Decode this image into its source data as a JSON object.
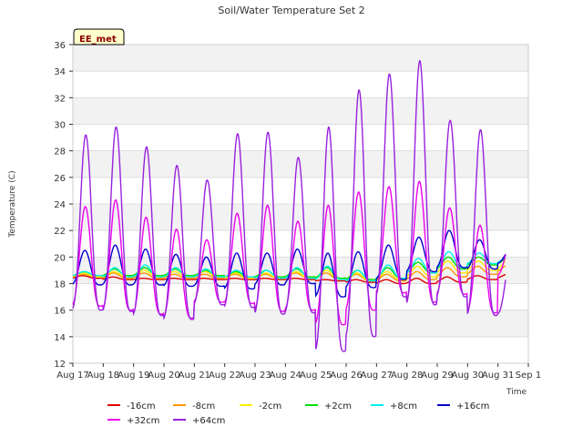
{
  "chart_data": {
    "type": "line",
    "title": "Soil/Water Temperature Set 2",
    "xlabel": "Time",
    "ylabel": "Temperature (C)",
    "badge": "EE_met",
    "x_ticks": [
      "Aug 17",
      "Aug 18",
      "Aug 19",
      "Aug 20",
      "Aug 21",
      "Aug 22",
      "Aug 23",
      "Aug 24",
      "Aug 25",
      "Aug 26",
      "Aug 27",
      "Aug 28",
      "Aug 29",
      "Aug 30",
      "Aug 31",
      "Sep 1"
    ],
    "xlim": [
      0,
      15
    ],
    "ylim": [
      12,
      36
    ],
    "y_ticks": [
      12,
      14,
      16,
      18,
      20,
      22,
      24,
      26,
      28,
      30,
      32,
      34,
      36
    ],
    "grid": "horizontal bands",
    "legend_position": "bottom",
    "series": [
      {
        "name": "-16cm",
        "color": "#dd0000",
        "min": [
          18.4,
          18.3,
          18.3,
          18.3,
          18.3,
          18.3,
          18.3,
          18.3,
          18.2,
          18.1,
          18.0,
          18.0,
          18.1,
          18.3,
          18.4
        ],
        "max": [
          18.6,
          18.5,
          18.4,
          18.4,
          18.4,
          18.4,
          18.4,
          18.4,
          18.3,
          18.3,
          18.3,
          18.4,
          18.5,
          18.6,
          18.7
        ]
      },
      {
        "name": "-8cm",
        "color": "#ff9900",
        "min": [
          18.5,
          18.4,
          18.4,
          18.4,
          18.4,
          18.4,
          18.4,
          18.4,
          18.3,
          18.2,
          18.2,
          18.3,
          18.5,
          18.7,
          18.9
        ],
        "max": [
          18.7,
          18.8,
          18.8,
          18.7,
          18.7,
          18.7,
          18.7,
          18.8,
          18.8,
          18.7,
          18.7,
          18.9,
          19.2,
          19.3,
          19.4
        ]
      },
      {
        "name": "-2cm",
        "color": "#ffee00",
        "min": [
          18.5,
          18.5,
          18.5,
          18.5,
          18.5,
          18.4,
          18.4,
          18.4,
          18.3,
          18.2,
          18.3,
          18.5,
          18.8,
          19.0,
          19.1
        ],
        "max": [
          18.8,
          18.9,
          19.0,
          18.9,
          18.9,
          18.8,
          18.8,
          18.9,
          19.0,
          18.8,
          18.9,
          19.3,
          19.7,
          19.7,
          19.8
        ]
      },
      {
        "name": "+2cm",
        "color": "#00dd00",
        "min": [
          18.6,
          18.6,
          18.6,
          18.6,
          18.6,
          18.5,
          18.5,
          18.5,
          18.4,
          18.3,
          18.4,
          18.8,
          19.1,
          19.4,
          19.5
        ],
        "max": [
          18.9,
          19.1,
          19.2,
          19.1,
          19.0,
          18.9,
          19.0,
          19.1,
          19.2,
          19.0,
          19.2,
          19.6,
          20.0,
          20.0,
          20.0
        ]
      },
      {
        "name": "+8cm",
        "color": "#00eeee",
        "min": [
          18.6,
          18.5,
          18.5,
          18.5,
          18.5,
          18.5,
          18.4,
          18.4,
          18.3,
          18.2,
          18.4,
          18.8,
          19.2,
          19.5,
          19.6
        ],
        "max": [
          18.9,
          19.2,
          19.4,
          19.2,
          19.1,
          19.0,
          19.0,
          19.2,
          19.3,
          19.0,
          19.4,
          19.9,
          20.4,
          20.3,
          20.2
        ]
      },
      {
        "name": "+16cm",
        "color": "#0000cc",
        "min": [
          17.9,
          17.9,
          17.9,
          17.8,
          17.8,
          17.6,
          17.9,
          18.0,
          17.0,
          17.7,
          18.3,
          18.9,
          19.2,
          19.1,
          19.5
        ],
        "max": [
          20.5,
          20.9,
          20.6,
          20.2,
          20.0,
          20.3,
          20.3,
          20.6,
          20.3,
          20.4,
          20.9,
          21.5,
          22.0,
          21.3,
          20.5
        ]
      },
      {
        "name": "+32cm",
        "color": "#ee00ee",
        "min": [
          16.3,
          16.0,
          15.7,
          15.4,
          16.6,
          16.5,
          15.9,
          16.0,
          14.9,
          16.0,
          17.3,
          16.6,
          17.2,
          15.8,
          18.6
        ],
        "max": [
          23.8,
          24.3,
          23.0,
          22.1,
          21.3,
          23.3,
          23.9,
          22.7,
          23.9,
          24.9,
          25.3,
          25.7,
          23.7,
          22.4,
          21.0
        ]
      },
      {
        "name": "+64cm",
        "color": "#9922dd",
        "min": [
          16.0,
          15.9,
          15.6,
          15.3,
          16.4,
          16.2,
          15.7,
          15.8,
          12.9,
          14.0,
          17.0,
          16.4,
          17.0,
          15.6,
          15.7
        ],
        "max": [
          29.2,
          29.8,
          28.3,
          26.9,
          25.8,
          29.3,
          29.4,
          27.5,
          29.8,
          32.6,
          33.8,
          34.8,
          30.3,
          29.6,
          20.0
        ]
      }
    ]
  }
}
